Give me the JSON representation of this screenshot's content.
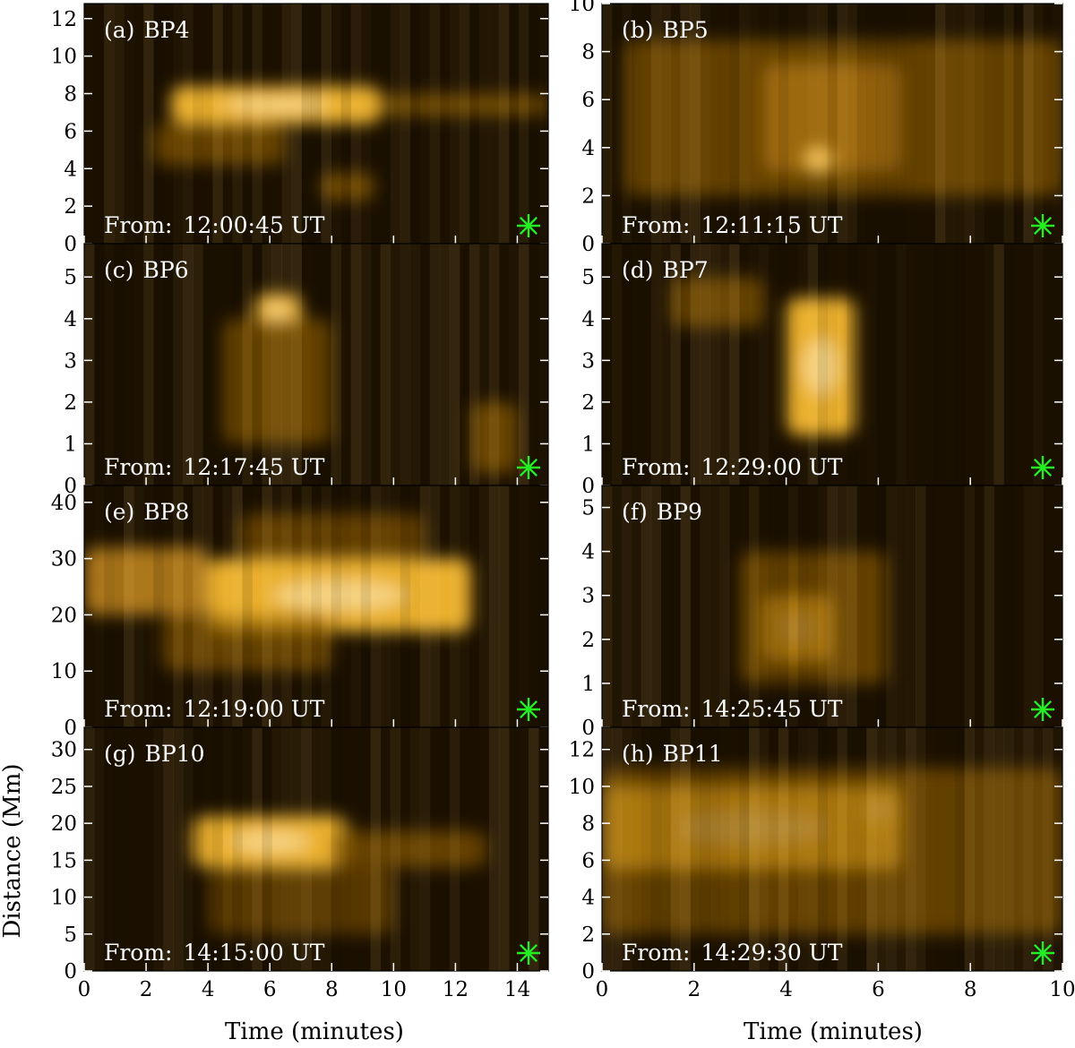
{
  "figure": {
    "xlabel": "Time (minutes)",
    "ylabel": "Distance (Mm)"
  },
  "colors": {
    "background_dark": "#1c1100",
    "mid": "#8a5a00",
    "bright": "#f5b830",
    "peak": "#fff1c8",
    "marker": "#22ee22"
  },
  "chart_data": [
    {
      "type": "heatmap",
      "panel_label": "(a)",
      "name": "BP4",
      "from_label": "From:",
      "from_time": "12:00:45 UT",
      "xlim": [
        0,
        15
      ],
      "ylim": [
        0,
        12.8
      ],
      "xticks": [],
      "yticks": [
        0,
        2,
        4,
        6,
        8,
        10,
        12
      ],
      "marker": "asterisk",
      "features": [
        {
          "t": [
            2.8,
            9.6
          ],
          "d": [
            6.4,
            8.4
          ],
          "intensity": 1.0
        },
        {
          "t": [
            2.2,
            6.5
          ],
          "d": [
            4.2,
            6.4
          ],
          "intensity": 0.55
        },
        {
          "t": [
            9.6,
            15
          ],
          "d": [
            6.8,
            8.0
          ],
          "intensity": 0.6
        },
        {
          "t": [
            7.6,
            9.4
          ],
          "d": [
            2.3,
            3.8
          ],
          "intensity": 0.6
        }
      ]
    },
    {
      "type": "heatmap",
      "panel_label": "(b)",
      "name": "BP5",
      "from_label": "From:",
      "from_time": "12:11:15 UT",
      "xlim": [
        0,
        10
      ],
      "ylim": [
        0,
        10
      ],
      "xticks": [],
      "yticks": [
        0,
        2,
        4,
        6,
        8,
        10
      ],
      "marker": "asterisk",
      "features": [
        {
          "t": [
            3.5,
            6.5
          ],
          "d": [
            3.0,
            7.5
          ],
          "intensity": 0.9
        },
        {
          "t": [
            0.5,
            10
          ],
          "d": [
            2.0,
            8.5
          ],
          "intensity": 0.55
        },
        {
          "t": [
            4.4,
            5.0
          ],
          "d": [
            3.0,
            4.0
          ],
          "intensity": 0.95
        }
      ]
    },
    {
      "type": "heatmap",
      "panel_label": "(c)",
      "name": "BP6",
      "from_label": "From:",
      "from_time": "12:17:45 UT",
      "xlim": [
        0,
        15
      ],
      "ylim": [
        0,
        5.8
      ],
      "xticks": [],
      "yticks": [
        0,
        1,
        2,
        3,
        4,
        5
      ],
      "marker": "asterisk",
      "features": [
        {
          "t": [
            5.5,
            7.0
          ],
          "d": [
            3.8,
            4.6
          ],
          "intensity": 1.0
        },
        {
          "t": [
            4.5,
            8.0
          ],
          "d": [
            1.0,
            4.0
          ],
          "intensity": 0.6
        },
        {
          "t": [
            12.5,
            14.0
          ],
          "d": [
            0.3,
            2.0
          ],
          "intensity": 0.6
        }
      ]
    },
    {
      "type": "heatmap",
      "panel_label": "(d)",
      "name": "BP7",
      "from_label": "From:",
      "from_time": "12:29:00 UT",
      "xlim": [
        0,
        10
      ],
      "ylim": [
        0,
        5.8
      ],
      "xticks": [],
      "yticks": [
        0,
        1,
        2,
        3,
        4,
        5
      ],
      "marker": "asterisk",
      "features": [
        {
          "t": [
            4.0,
            5.5
          ],
          "d": [
            1.2,
            4.5
          ],
          "intensity": 1.0
        },
        {
          "t": [
            1.5,
            3.5
          ],
          "d": [
            3.8,
            5.0
          ],
          "intensity": 0.55
        }
      ]
    },
    {
      "type": "heatmap",
      "panel_label": "(e)",
      "name": "BP8",
      "from_label": "From:",
      "from_time": "12:19:00 UT",
      "xlim": [
        0,
        15
      ],
      "ylim": [
        0,
        43
      ],
      "xticks": [],
      "yticks": [
        0,
        10,
        20,
        30,
        40
      ],
      "marker": "asterisk",
      "features": [
        {
          "t": [
            4.0,
            12.5
          ],
          "d": [
            17,
            30
          ],
          "intensity": 1.0
        },
        {
          "t": [
            0,
            4.0
          ],
          "d": [
            20,
            32
          ],
          "intensity": 0.7
        },
        {
          "t": [
            2.5,
            8.0
          ],
          "d": [
            10,
            20
          ],
          "intensity": 0.5
        },
        {
          "t": [
            5.0,
            11.0
          ],
          "d": [
            30,
            38
          ],
          "intensity": 0.45
        }
      ]
    },
    {
      "type": "heatmap",
      "panel_label": "(f)",
      "name": "BP9",
      "from_label": "From:",
      "from_time": "14:25:45 UT",
      "xlim": [
        0,
        10
      ],
      "ylim": [
        0,
        5.5
      ],
      "xticks": [],
      "yticks": [
        0,
        1,
        2,
        3,
        4,
        5
      ],
      "marker": "asterisk",
      "features": [
        {
          "t": [
            3.5,
            5.0
          ],
          "d": [
            1.5,
            3.0
          ],
          "intensity": 1.0
        },
        {
          "t": [
            3.0,
            6.2
          ],
          "d": [
            1.0,
            4.0
          ],
          "intensity": 0.55
        }
      ]
    },
    {
      "type": "heatmap",
      "panel_label": "(g)",
      "name": "BP10",
      "from_label": "From:",
      "from_time": "14:15:00 UT",
      "xlim": [
        0,
        15
      ],
      "ylim": [
        0,
        33
      ],
      "xticks": [
        0,
        2,
        4,
        6,
        8,
        10,
        12,
        14
      ],
      "yticks": [
        0,
        5,
        10,
        15,
        20,
        25,
        30
      ],
      "marker": "asterisk",
      "features": [
        {
          "t": [
            3.5,
            8.5
          ],
          "d": [
            14,
            21
          ],
          "intensity": 1.0
        },
        {
          "t": [
            8.0,
            13.0
          ],
          "d": [
            14,
            19
          ],
          "intensity": 0.55
        },
        {
          "t": [
            4.0,
            10.0
          ],
          "d": [
            5,
            14
          ],
          "intensity": 0.35
        }
      ]
    },
    {
      "type": "heatmap",
      "panel_label": "(h)",
      "name": "BP11",
      "from_label": "From:",
      "from_time": "14:29:30 UT",
      "xlim": [
        0,
        10
      ],
      "ylim": [
        0,
        13.2
      ],
      "xticks": [
        0,
        2,
        4,
        6,
        8,
        10
      ],
      "yticks": [
        0,
        2,
        4,
        6,
        8,
        10,
        12
      ],
      "marker": "asterisk",
      "features": [
        {
          "t": [
            0,
            6.5
          ],
          "d": [
            5.5,
            10.0
          ],
          "intensity": 0.95
        },
        {
          "t": [
            5.5,
            6.5
          ],
          "d": [
            7.5,
            10.0
          ],
          "intensity": 1.0
        },
        {
          "t": [
            0,
            10
          ],
          "d": [
            2.0,
            11.0
          ],
          "intensity": 0.5
        }
      ]
    }
  ]
}
